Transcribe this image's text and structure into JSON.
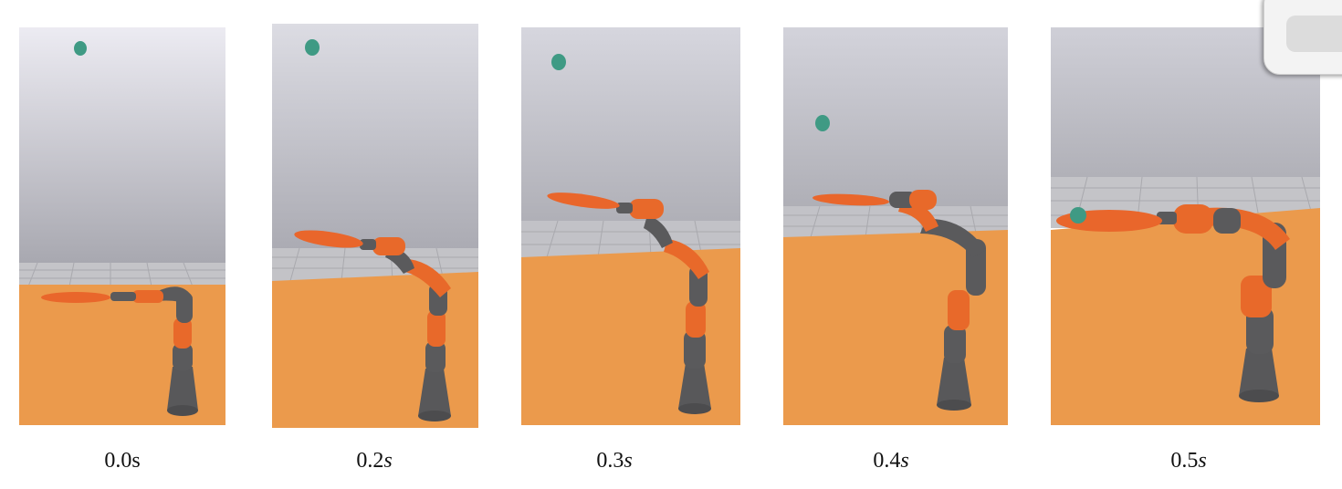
{
  "figure": {
    "panels": [
      {
        "caption_value": "0.0",
        "caption_unit": "s",
        "unit_italic": false,
        "icon": "robot-arm-scene"
      },
      {
        "caption_value": "0.2",
        "caption_unit": "s",
        "unit_italic": true,
        "icon": "robot-arm-scene"
      },
      {
        "caption_value": "0.3",
        "caption_unit": "s",
        "unit_italic": true,
        "icon": "robot-arm-scene"
      },
      {
        "caption_value": "0.4",
        "caption_unit": "s",
        "unit_italic": true,
        "icon": "robot-arm-scene"
      },
      {
        "caption_value": "0.5",
        "caption_unit": "s",
        "unit_italic": true,
        "icon": "robot-arm-scene"
      }
    ]
  },
  "colors": {
    "sky_top": "#e9e9f0",
    "sky_bottom": "#a9a9b1",
    "floor": "#eb9a4c",
    "grid": "#b8b8bc",
    "robot_gray": "#5a5a5c",
    "robot_orange": "#e8692a",
    "paddle": "#e9662b",
    "ball": "#3f9a84"
  }
}
